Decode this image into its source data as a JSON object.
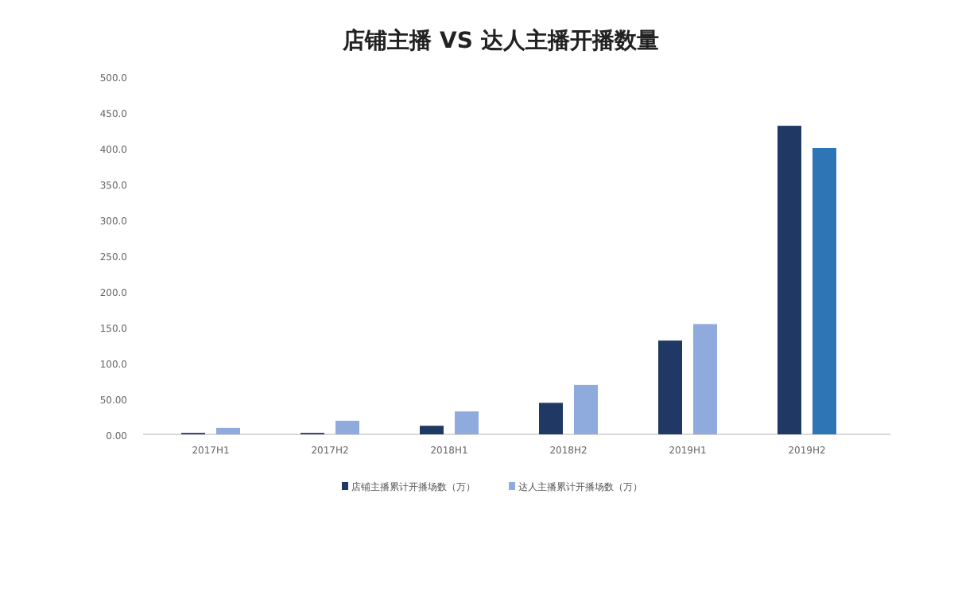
{
  "chart_data": {
    "type": "bar",
    "title": "店铺主播 VS 达人主播开播数量",
    "categories": [
      "2017H1",
      "2017H2",
      "2018H1",
      "2018H2",
      "2019H1",
      "2019H2"
    ],
    "series": [
      {
        "name": "店铺主播累计开播场数（万）",
        "color": "#203864",
        "values": [
          2,
          2,
          12,
          44,
          131,
          431
        ]
      },
      {
        "name": "达人主播累计开播场数（万）",
        "color": "#8faadc",
        "colors": [
          "#8faadc",
          "#8faadc",
          "#8faadc",
          "#8faadc",
          "#8faadc",
          "#2e75b6"
        ],
        "values": [
          9,
          19,
          32,
          69,
          154,
          400
        ]
      }
    ],
    "ylim": [
      0,
      500
    ],
    "yticks": [
      {
        "value": 0,
        "label": "0.00"
      },
      {
        "value": 50,
        "label": "50.00"
      },
      {
        "value": 100,
        "label": "100.0"
      },
      {
        "value": 150,
        "label": "150.0"
      },
      {
        "value": 200,
        "label": "200.0"
      },
      {
        "value": 250,
        "label": "250.0"
      },
      {
        "value": 300,
        "label": "300.0"
      },
      {
        "value": 350,
        "label": "350.0"
      },
      {
        "value": 400,
        "label": "400.0"
      },
      {
        "value": 450,
        "label": "450.0"
      },
      {
        "value": 500,
        "label": "500.0"
      }
    ],
    "grid": false,
    "legend": "bottom"
  }
}
